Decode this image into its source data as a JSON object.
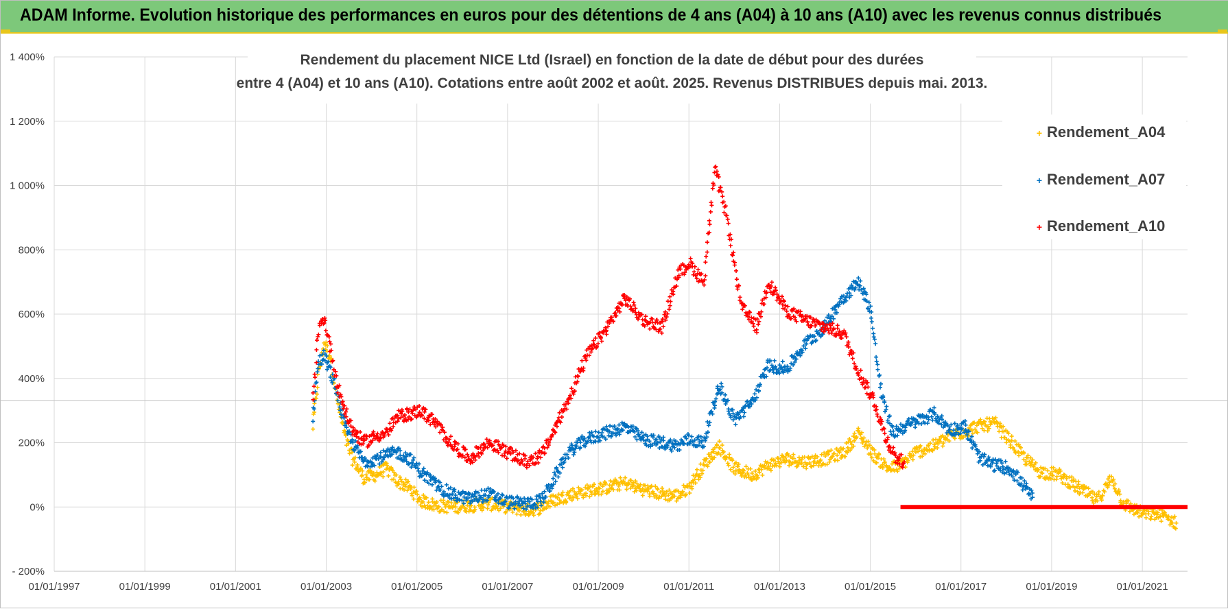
{
  "header": {
    "title": "ADAM Informe. Evolution historique des performances en euros pour des détentions de 4 ans (A04) à 10 ans (A10) avec les revenus connus distribués"
  },
  "chart_data": {
    "type": "scatter",
    "title_line1": "Rendement du placement NICE Ltd (Israel) en fonction de la date de début pour des durées",
    "title_line2": "entre 4 (A04) et 10 ans (A10).  Cotations entre août 2002 et août. 2025. Revenus DISTRIBUES depuis mai. 2013.",
    "xlabel": "",
    "ylabel": "",
    "x_ticks": [
      "01/01/1997",
      "01/01/1999",
      "01/01/2001",
      "01/01/2003",
      "01/01/2005",
      "01/01/2007",
      "01/01/2009",
      "01/01/2011",
      "01/01/2013",
      "01/01/2015",
      "01/01/2017",
      "01/01/2019",
      "01/01/2021"
    ],
    "y_ticks": [
      "- 200%",
      "0%",
      "200%",
      "400%",
      "600%",
      "800%",
      "1 000%",
      "1 200%",
      "1 400%"
    ],
    "xlim": [
      "1997-01-01",
      "2021-12-31"
    ],
    "ylim": [
      -200,
      1400
    ],
    "grid": true,
    "legend_position": "right",
    "marker": "+",
    "series": [
      {
        "name": "Rendement_A04",
        "color": "#ffc000",
        "points": [
          [
            "2002-09-15",
            250
          ],
          [
            "2002-11-01",
            420
          ],
          [
            "2002-12-15",
            510
          ],
          [
            "2003-02-01",
            470
          ],
          [
            "2003-04-01",
            330
          ],
          [
            "2003-06-01",
            220
          ],
          [
            "2003-08-01",
            150
          ],
          [
            "2003-11-01",
            90
          ],
          [
            "2004-02-01",
            100
          ],
          [
            "2004-05-01",
            120
          ],
          [
            "2004-08-01",
            80
          ],
          [
            "2004-11-01",
            60
          ],
          [
            "2005-02-01",
            20
          ],
          [
            "2005-06-01",
            5
          ],
          [
            "2005-10-01",
            0
          ],
          [
            "2006-03-01",
            5
          ],
          [
            "2006-08-01",
            10
          ],
          [
            "2007-01-01",
            0
          ],
          [
            "2007-06-01",
            -10
          ],
          [
            "2007-09-01",
            -5
          ],
          [
            "2008-01-01",
            20
          ],
          [
            "2008-06-01",
            40
          ],
          [
            "2008-10-01",
            50
          ],
          [
            "2009-03-01",
            60
          ],
          [
            "2009-08-01",
            75
          ],
          [
            "2010-01-01",
            55
          ],
          [
            "2010-06-01",
            40
          ],
          [
            "2010-10-01",
            35
          ],
          [
            "2011-01-01",
            60
          ],
          [
            "2011-05-01",
            130
          ],
          [
            "2011-09-01",
            190
          ],
          [
            "2012-01-01",
            120
          ],
          [
            "2012-06-01",
            100
          ],
          [
            "2012-10-01",
            130
          ],
          [
            "2013-03-01",
            150
          ],
          [
            "2013-08-01",
            140
          ],
          [
            "2014-01-01",
            150
          ],
          [
            "2014-06-01",
            170
          ],
          [
            "2014-10-01",
            230
          ],
          [
            "2015-02-01",
            160
          ],
          [
            "2015-06-01",
            120
          ],
          [
            "2015-09-01",
            130
          ],
          [
            "2016-01-01",
            170
          ],
          [
            "2016-06-01",
            190
          ],
          [
            "2016-10-01",
            220
          ],
          [
            "2017-01-01",
            230
          ],
          [
            "2017-05-01",
            250
          ],
          [
            "2017-10-01",
            260
          ],
          [
            "2018-01-01",
            220
          ],
          [
            "2018-06-01",
            150
          ],
          [
            "2018-10-01",
            110
          ],
          [
            "2019-03-01",
            100
          ],
          [
            "2019-08-01",
            60
          ],
          [
            "2020-01-01",
            20
          ],
          [
            "2020-05-01",
            90
          ],
          [
            "2020-08-01",
            10
          ],
          [
            "2021-01-01",
            -20
          ],
          [
            "2021-06-01",
            -25
          ],
          [
            "2021-10-01",
            -50
          ]
        ]
      },
      {
        "name": "Rendement_A07",
        "color": "#0070c0",
        "points": [
          [
            "2002-09-15",
            280
          ],
          [
            "2002-11-01",
            450
          ],
          [
            "2002-12-15",
            470
          ],
          [
            "2003-02-01",
            420
          ],
          [
            "2003-04-01",
            350
          ],
          [
            "2003-06-01",
            250
          ],
          [
            "2003-08-01",
            200
          ],
          [
            "2003-11-01",
            140
          ],
          [
            "2004-02-01",
            150
          ],
          [
            "2004-05-01",
            160
          ],
          [
            "2004-08-01",
            170
          ],
          [
            "2004-11-01",
            150
          ],
          [
            "2005-02-01",
            110
          ],
          [
            "2005-06-01",
            70
          ],
          [
            "2005-10-01",
            40
          ],
          [
            "2006-03-01",
            25
          ],
          [
            "2006-08-01",
            40
          ],
          [
            "2007-01-01",
            15
          ],
          [
            "2007-06-01",
            10
          ],
          [
            "2007-10-01",
            20
          ],
          [
            "2008-01-01",
            80
          ],
          [
            "2008-05-01",
            170
          ],
          [
            "2008-10-01",
            210
          ],
          [
            "2009-03-01",
            230
          ],
          [
            "2009-08-01",
            250
          ],
          [
            "2010-01-01",
            210
          ],
          [
            "2010-06-01",
            200
          ],
          [
            "2010-10-01",
            190
          ],
          [
            "2011-01-01",
            210
          ],
          [
            "2011-05-01",
            200
          ],
          [
            "2011-09-01",
            380
          ],
          [
            "2012-01-01",
            270
          ],
          [
            "2012-06-01",
            330
          ],
          [
            "2012-10-01",
            440
          ],
          [
            "2013-03-01",
            430
          ],
          [
            "2013-08-01",
            510
          ],
          [
            "2014-01-01",
            560
          ],
          [
            "2014-05-01",
            640
          ],
          [
            "2014-10-01",
            700
          ],
          [
            "2015-01-01",
            620
          ],
          [
            "2015-04-01",
            350
          ],
          [
            "2015-07-01",
            230
          ],
          [
            "2015-10-01",
            250
          ],
          [
            "2016-02-01",
            270
          ],
          [
            "2016-06-01",
            290
          ],
          [
            "2016-10-01",
            240
          ],
          [
            "2017-02-01",
            250
          ],
          [
            "2017-06-01",
            150
          ],
          [
            "2017-10-01",
            130
          ],
          [
            "2018-02-01",
            120
          ],
          [
            "2018-06-01",
            60
          ],
          [
            "2018-08-01",
            30
          ]
        ]
      },
      {
        "name": "Rendement_A10",
        "color": "#ff0000",
        "points": [
          [
            "2002-09-15",
            320
          ],
          [
            "2002-11-01",
            550
          ],
          [
            "2002-12-15",
            590
          ],
          [
            "2003-02-01",
            500
          ],
          [
            "2003-04-01",
            380
          ],
          [
            "2003-06-01",
            300
          ],
          [
            "2003-08-01",
            240
          ],
          [
            "2003-11-01",
            200
          ],
          [
            "2004-02-01",
            220
          ],
          [
            "2004-05-01",
            230
          ],
          [
            "2004-08-01",
            280
          ],
          [
            "2004-11-01",
            290
          ],
          [
            "2005-02-01",
            300
          ],
          [
            "2005-06-01",
            260
          ],
          [
            "2005-10-01",
            200
          ],
          [
            "2006-03-01",
            150
          ],
          [
            "2006-08-01",
            200
          ],
          [
            "2007-01-01",
            170
          ],
          [
            "2007-06-01",
            140
          ],
          [
            "2007-10-01",
            160
          ],
          [
            "2008-01-01",
            230
          ],
          [
            "2008-05-01",
            330
          ],
          [
            "2008-10-01",
            470
          ],
          [
            "2009-03-01",
            550
          ],
          [
            "2009-08-01",
            650
          ],
          [
            "2010-01-01",
            580
          ],
          [
            "2010-06-01",
            560
          ],
          [
            "2010-10-01",
            720
          ],
          [
            "2011-01-01",
            760
          ],
          [
            "2011-05-01",
            700
          ],
          [
            "2011-08-01",
            1050
          ],
          [
            "2011-11-01",
            900
          ],
          [
            "2012-03-01",
            620
          ],
          [
            "2012-07-01",
            560
          ],
          [
            "2012-10-01",
            700
          ],
          [
            "2013-03-01",
            610
          ],
          [
            "2013-08-01",
            580
          ],
          [
            "2014-01-01",
            560
          ],
          [
            "2014-06-01",
            540
          ],
          [
            "2014-10-01",
            420
          ],
          [
            "2015-02-01",
            330
          ],
          [
            "2015-05-01",
            220
          ],
          [
            "2015-08-01",
            150
          ],
          [
            "2015-10-01",
            140
          ]
        ]
      }
    ],
    "zero_series": {
      "color": "#ff0000",
      "x_start": "2015-09-01",
      "x_end": "2021-12-31",
      "y": 0
    }
  }
}
